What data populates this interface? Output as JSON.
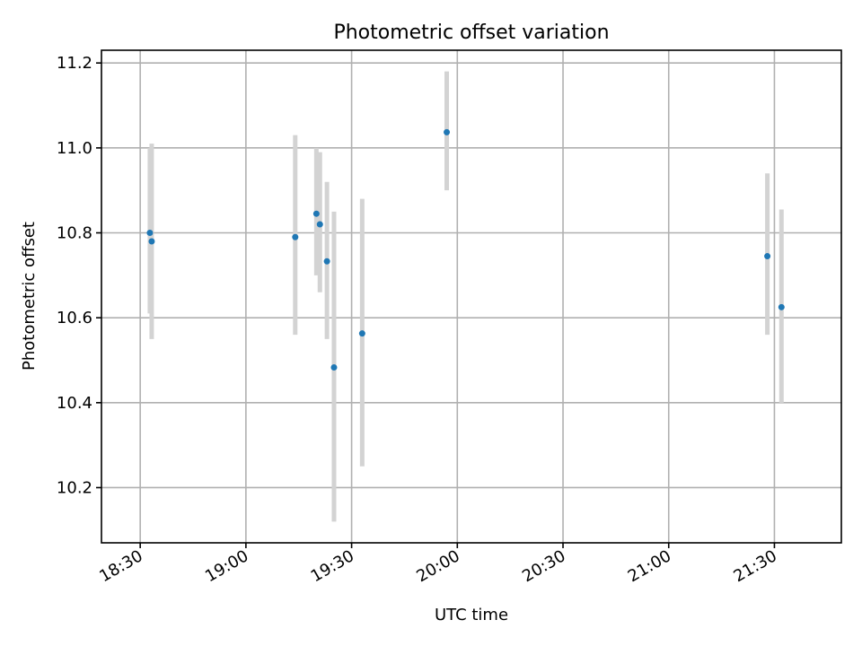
{
  "chart_data": {
    "type": "scatter",
    "title": "Photometric offset variation",
    "xlabel": "UTC time",
    "ylabel": "Photometric offset",
    "xlim": [
      "18:19",
      "21:49"
    ],
    "ylim": [
      10.07,
      11.23
    ],
    "x_ticks": [
      "18:30",
      "19:00",
      "19:30",
      "20:00",
      "20:30",
      "21:00",
      "21:30"
    ],
    "y_ticks": [
      10.2,
      10.4,
      10.6,
      10.8,
      11.0,
      11.2
    ],
    "grid": true,
    "colors": {
      "points": "#1f77b4",
      "error_bars": "#d3d3d3",
      "grid": "#b0b0b0"
    },
    "points": [
      {
        "time": "18:33",
        "y": 10.8,
        "err_low": 10.61,
        "err_high": 11.0
      },
      {
        "time": "18:33",
        "y": 10.78,
        "err_low": 10.55,
        "err_high": 11.01
      },
      {
        "time": "19:14",
        "y": 10.79,
        "err_low": 10.56,
        "err_high": 11.03
      },
      {
        "time": "19:20",
        "y": 10.845,
        "err_low": 10.7,
        "err_high": 11.0
      },
      {
        "time": "19:21",
        "y": 10.82,
        "err_low": 10.66,
        "err_high": 10.99
      },
      {
        "time": "19:23",
        "y": 10.733,
        "err_low": 10.55,
        "err_high": 10.92
      },
      {
        "time": "19:25",
        "y": 10.483,
        "err_low": 10.12,
        "err_high": 10.85
      },
      {
        "time": "19:33",
        "y": 10.563,
        "err_low": 10.25,
        "err_high": 10.88
      },
      {
        "time": "19:57",
        "y": 11.037,
        "err_low": 10.9,
        "err_high": 11.18
      },
      {
        "time": "21:28",
        "y": 10.745,
        "err_low": 10.56,
        "err_high": 10.94
      },
      {
        "time": "21:32",
        "y": 10.625,
        "err_low": 10.4,
        "err_high": 10.855
      }
    ]
  }
}
